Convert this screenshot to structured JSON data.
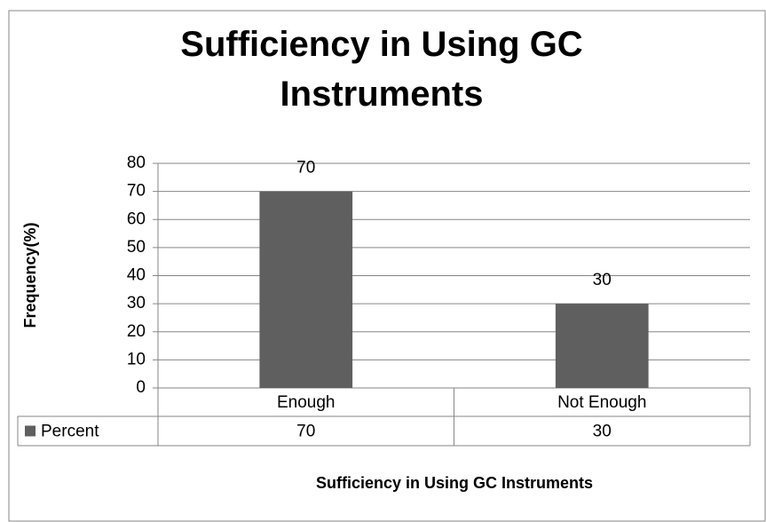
{
  "chart_data": {
    "type": "bar",
    "title": "Sufficiency in Using GC Instruments",
    "categories": [
      "Enough",
      "Not Enough"
    ],
    "series": [
      {
        "name": "Percent",
        "color": "#5f5f5f",
        "values": [
          70,
          30
        ]
      }
    ],
    "ylim": [
      0,
      80
    ],
    "yticks": [
      0,
      10,
      20,
      30,
      40,
      50,
      60,
      70,
      80
    ],
    "grid": true,
    "y_label": "Frequency(%)",
    "x_label": "Sufficiency in Using GC Instruments"
  }
}
